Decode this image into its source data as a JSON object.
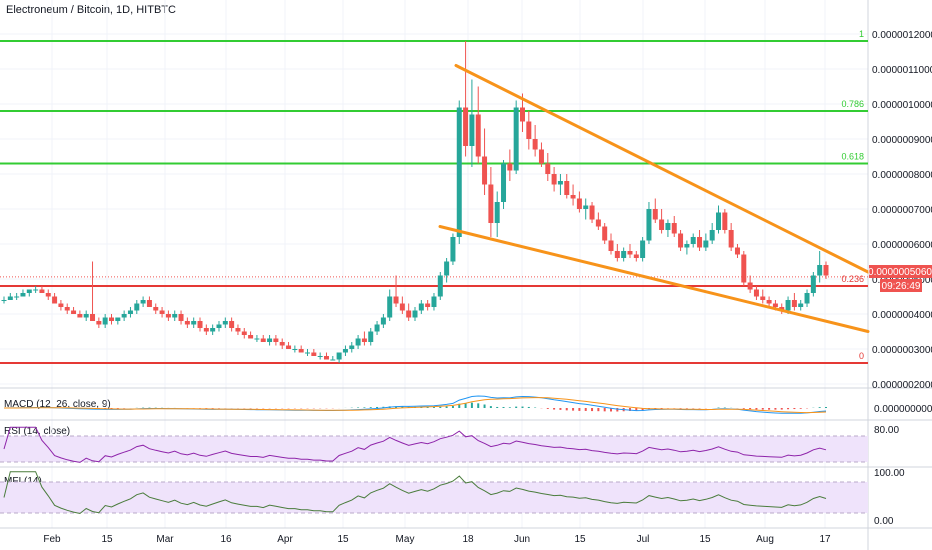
{
  "header": {
    "title": "Electroneum / Bitcoin, 1D, HITBTC"
  },
  "price_axis": {
    "ticks": [
      "0.0000012000",
      "0.0000011000",
      "0.0000010000",
      "0.0000009000",
      "0.0000008000",
      "0.0000007000",
      "0.0000006000",
      "0.0000005000",
      "0.0000004000",
      "0.0000003000",
      "0.0000002000"
    ],
    "last_price": "0.0000005060",
    "countdown": "09:26:49"
  },
  "time_axis": {
    "labels": [
      "Feb",
      "15",
      "Mar",
      "16",
      "Apr",
      "15",
      "May",
      "18",
      "Jun",
      "15",
      "Jul",
      "15",
      "Aug",
      "17"
    ]
  },
  "panes": {
    "macd": {
      "label": "MACD (12, 26, close, 9)",
      "tick": "0.0000000000"
    },
    "rsi": {
      "label": "RSI (14, close)",
      "tick": "80.00"
    },
    "mfi": {
      "label": "MFI (14)",
      "tick_top": "100.00",
      "tick_bottom": "0.00"
    }
  },
  "colors": {
    "up": "#26a69a",
    "down": "#ef5350",
    "fib_green": "#33cc33",
    "support_red": "#e53935",
    "wedge": "#f7931a",
    "osc_line": "#8e24aa",
    "mfi_line": "#4a7c3c",
    "band_fill": "#efe3fb"
  },
  "chart_data": {
    "type": "candlestick",
    "title": "Electroneum / Bitcoin, 1D, HITBTC",
    "ylim": [
      1.5e-07,
      1.25e-06
    ],
    "fib_levels": [
      {
        "label": "1",
        "value": 1.18e-06
      },
      {
        "label": "0.786",
        "value": 9.8e-07
      },
      {
        "label": "0.618",
        "value": 8.3e-07
      },
      {
        "label": "0.236",
        "value": 4.8e-07
      },
      {
        "label": "0",
        "value": 2.6e-07
      }
    ],
    "wedge_upper": [
      [
        "May 14",
        1.11e-06
      ],
      [
        "Aug 20",
        5.2e-07
      ]
    ],
    "wedge_lower": [
      [
        "May 10",
        6.5e-07
      ],
      [
        "Aug 20",
        3.5e-07
      ]
    ],
    "annotations": [
      "0.236 marker",
      "0 marker"
    ],
    "candles": [
      [
        4.4e-07,
        4.5e-07,
        4.3e-07,
        4.4e-07
      ],
      [
        4.4e-07,
        4.6e-07,
        4.4e-07,
        4.5e-07
      ],
      [
        4.5e-07,
        4.6e-07,
        4.4e-07,
        4.5e-07
      ],
      [
        4.5e-07,
        4.7e-07,
        4.5e-07,
        4.6e-07
      ],
      [
        4.6e-07,
        4.7e-07,
        4.5e-07,
        4.7e-07
      ],
      [
        4.7e-07,
        4.8e-07,
        4.6e-07,
        4.7e-07
      ],
      [
        4.7e-07,
        4.8e-07,
        4.6e-07,
        4.6e-07
      ],
      [
        4.6e-07,
        4.7e-07,
        4.4e-07,
        4.5e-07
      ],
      [
        4.5e-07,
        4.6e-07,
        4.3e-07,
        4.3e-07
      ],
      [
        4.3e-07,
        4.4e-07,
        4.1e-07,
        4.2e-07
      ],
      [
        4.2e-07,
        4.3e-07,
        4e-07,
        4.1e-07
      ],
      [
        4.1e-07,
        4.2e-07,
        4e-07,
        4e-07
      ],
      [
        4e-07,
        4.1e-07,
        3.9e-07,
        3.9e-07
      ],
      [
        3.9e-07,
        4.1e-07,
        3.8e-07,
        4e-07
      ],
      [
        4e-07,
        5.5e-07,
        3.9e-07,
        3.8e-07
      ],
      [
        3.8e-07,
        3.9e-07,
        3.6e-07,
        3.7e-07
      ],
      [
        3.7e-07,
        4e-07,
        3.6e-07,
        3.9e-07
      ],
      [
        3.9e-07,
        4e-07,
        3.7e-07,
        3.8e-07
      ],
      [
        3.8e-07,
        3.9e-07,
        3.7e-07,
        3.9e-07
      ],
      [
        3.9e-07,
        4.1e-07,
        3.8e-07,
        4e-07
      ],
      [
        4e-07,
        4.2e-07,
        3.9e-07,
        4.1e-07
      ],
      [
        4.1e-07,
        4.4e-07,
        4e-07,
        4.3e-07
      ],
      [
        4.3e-07,
        4.5e-07,
        4.2e-07,
        4.4e-07
      ],
      [
        4.4e-07,
        4.5e-07,
        4.2e-07,
        4.2e-07
      ],
      [
        4.2e-07,
        4.3e-07,
        4e-07,
        4.1e-07
      ],
      [
        4.1e-07,
        4.2e-07,
        3.9e-07,
        4e-07
      ],
      [
        4e-07,
        4.1e-07,
        3.8e-07,
        3.9e-07
      ],
      [
        3.9e-07,
        4.1e-07,
        3.8e-07,
        4e-07
      ],
      [
        4e-07,
        4.1e-07,
        3.7e-07,
        3.8e-07
      ],
      [
        3.8e-07,
        3.9e-07,
        3.6e-07,
        3.7e-07
      ],
      [
        3.7e-07,
        3.9e-07,
        3.6e-07,
        3.8e-07
      ],
      [
        3.8e-07,
        3.9e-07,
        3.5e-07,
        3.6e-07
      ],
      [
        3.6e-07,
        3.7e-07,
        3.4e-07,
        3.5e-07
      ],
      [
        3.5e-07,
        3.7e-07,
        3.4e-07,
        3.6e-07
      ],
      [
        3.6e-07,
        3.8e-07,
        3.5e-07,
        3.7e-07
      ],
      [
        3.7e-07,
        3.9e-07,
        3.6e-07,
        3.8e-07
      ],
      [
        3.8e-07,
        3.9e-07,
        3.5e-07,
        3.6e-07
      ],
      [
        3.6e-07,
        3.7e-07,
        3.4e-07,
        3.5e-07
      ],
      [
        3.5e-07,
        3.6e-07,
        3.3e-07,
        3.4e-07
      ],
      [
        3.4e-07,
        3.5e-07,
        3.3e-07,
        3.3e-07
      ],
      [
        3.3e-07,
        3.4e-07,
        3.2e-07,
        3.3e-07
      ],
      [
        3.3e-07,
        3.4e-07,
        3.2e-07,
        3.2e-07
      ],
      [
        3.2e-07,
        3.4e-07,
        3.1e-07,
        3.3e-07
      ],
      [
        3.3e-07,
        3.4e-07,
        3.1e-07,
        3.2e-07
      ],
      [
        3.2e-07,
        3.3e-07,
        3e-07,
        3.1e-07
      ],
      [
        3.1e-07,
        3.2e-07,
        3e-07,
        3e-07
      ],
      [
        3e-07,
        3.1e-07,
        2.9e-07,
        3e-07
      ],
      [
        3e-07,
        3.1e-07,
        2.9e-07,
        2.9e-07
      ],
      [
        2.9e-07,
        3e-07,
        2.8e-07,
        2.9e-07
      ],
      [
        2.9e-07,
        3e-07,
        2.8e-07,
        2.8e-07
      ],
      [
        2.8e-07,
        2.9e-07,
        2.7e-07,
        2.8e-07
      ],
      [
        2.8e-07,
        2.9e-07,
        2.7e-07,
        2.7e-07
      ],
      [
        2.7e-07,
        2.8e-07,
        2.7e-07,
        2.7e-07
      ],
      [
        2.7e-07,
        2.9e-07,
        2.6e-07,
        2.9e-07
      ],
      [
        2.9e-07,
        3.1e-07,
        2.8e-07,
        3e-07
      ],
      [
        3e-07,
        3.2e-07,
        2.9e-07,
        3.1e-07
      ],
      [
        3.1e-07,
        3.4e-07,
        3e-07,
        3.3e-07
      ],
      [
        3.3e-07,
        3.5e-07,
        3.1e-07,
        3.2e-07
      ],
      [
        3.2e-07,
        3.6e-07,
        3.1e-07,
        3.5e-07
      ],
      [
        3.5e-07,
        3.8e-07,
        3.4e-07,
        3.7e-07
      ],
      [
        3.7e-07,
        4e-07,
        3.6e-07,
        3.9e-07
      ],
      [
        3.9e-07,
        4.7e-07,
        3.8e-07,
        4.5e-07
      ],
      [
        4.5e-07,
        5.1e-07,
        4.2e-07,
        4.3e-07
      ],
      [
        4.3e-07,
        4.5e-07,
        4e-07,
        4.1e-07
      ],
      [
        4.1e-07,
        4.3e-07,
        3.8e-07,
        3.9e-07
      ],
      [
        3.9e-07,
        4.2e-07,
        3.8e-07,
        4.1e-07
      ],
      [
        4.1e-07,
        4.4e-07,
        4e-07,
        4.3e-07
      ],
      [
        4.3e-07,
        4.4e-07,
        4.1e-07,
        4.2e-07
      ],
      [
        4.2e-07,
        4.6e-07,
        4.1e-07,
        4.5e-07
      ],
      [
        4.5e-07,
        5.2e-07,
        4.4e-07,
        5.1e-07
      ],
      [
        5.1e-07,
        5.6e-07,
        4.9e-07,
        5.5e-07
      ],
      [
        5.5e-07,
        6.3e-07,
        5.4e-07,
        6.2e-07
      ],
      [
        6.2e-07,
        1.01e-06,
        6e-07,
        9.9e-07
      ],
      [
        9.9e-07,
        1.18e-06,
        8.5e-07,
        8.8e-07
      ],
      [
        8.8e-07,
        1.07e-06,
        8.2e-07,
        9.7e-07
      ],
      [
        9.7e-07,
        1.05e-06,
        8.3e-07,
        8.5e-07
      ],
      [
        8.5e-07,
        9.3e-07,
        7.4e-07,
        7.7e-07
      ],
      [
        7.7e-07,
        8.2e-07,
        6.2e-07,
        6.6e-07
      ],
      [
        6.6e-07,
        7.5e-07,
        6.2e-07,
        7.2e-07
      ],
      [
        7.2e-07,
        8.4e-07,
        7e-07,
        8.3e-07
      ],
      [
        8.3e-07,
        8.7e-07,
        7.8e-07,
        8.1e-07
      ],
      [
        8.1e-07,
        1.01e-06,
        8e-07,
        9.9e-07
      ],
      [
        9.9e-07,
        1.03e-06,
        9.2e-07,
        9.5e-07
      ],
      [
        9.5e-07,
        9.8e-07,
        8.7e-07,
        9e-07
      ],
      [
        9e-07,
        9.4e-07,
        8.5e-07,
        8.7e-07
      ],
      [
        8.7e-07,
        8.9e-07,
        8.2e-07,
        8.3e-07
      ],
      [
        8.3e-07,
        8.6e-07,
        7.8e-07,
        8e-07
      ],
      [
        8e-07,
        8.2e-07,
        7.5e-07,
        7.7e-07
      ],
      [
        7.7e-07,
        8e-07,
        7.4e-07,
        7.8e-07
      ],
      [
        7.8e-07,
        8e-07,
        7.3e-07,
        7.4e-07
      ],
      [
        7.4e-07,
        7.7e-07,
        7.1e-07,
        7.3e-07
      ],
      [
        7.3e-07,
        7.5e-07,
        6.9e-07,
        7e-07
      ],
      [
        7e-07,
        7.3e-07,
        6.7e-07,
        7.1e-07
      ],
      [
        7.1e-07,
        7.2e-07,
        6.6e-07,
        6.7e-07
      ],
      [
        6.7e-07,
        6.9e-07,
        6.4e-07,
        6.5e-07
      ],
      [
        6.5e-07,
        6.6e-07,
        6e-07,
        6.1e-07
      ],
      [
        6.1e-07,
        6.3e-07,
        5.7e-07,
        5.8e-07
      ],
      [
        5.8e-07,
        6e-07,
        5.5e-07,
        5.6e-07
      ],
      [
        5.6e-07,
        5.9e-07,
        5.5e-07,
        5.8e-07
      ],
      [
        5.8e-07,
        6e-07,
        5.6e-07,
        5.7e-07
      ],
      [
        5.7e-07,
        5.8e-07,
        5.5e-07,
        5.6e-07
      ],
      [
        5.6e-07,
        6.2e-07,
        5.5e-07,
        6.1e-07
      ],
      [
        6.1e-07,
        7.2e-07,
        6e-07,
        7e-07
      ],
      [
        7e-07,
        7.3e-07,
        6.6e-07,
        6.7e-07
      ],
      [
        6.7e-07,
        7e-07,
        6.3e-07,
        6.4e-07
      ],
      [
        6.4e-07,
        6.7e-07,
        6.2e-07,
        6.6e-07
      ],
      [
        6.6e-07,
        6.8e-07,
        6.2e-07,
        6.3e-07
      ],
      [
        6.3e-07,
        6.4e-07,
        5.8e-07,
        5.9e-07
      ],
      [
        5.9e-07,
        6.1e-07,
        5.7e-07,
        6e-07
      ],
      [
        6e-07,
        6.3e-07,
        5.9e-07,
        6.2e-07
      ],
      [
        6.2e-07,
        6.4e-07,
        5.8e-07,
        5.9e-07
      ],
      [
        5.9e-07,
        6.3e-07,
        5.8e-07,
        6.1e-07
      ],
      [
        6.1e-07,
        6.6e-07,
        6e-07,
        6.4e-07
      ],
      [
        6.4e-07,
        7.1e-07,
        6.3e-07,
        6.9e-07
      ],
      [
        6.9e-07,
        7e-07,
        6.3e-07,
        6.4e-07
      ],
      [
        6.4e-07,
        6.6e-07,
        5.8e-07,
        5.9e-07
      ],
      [
        5.9e-07,
        6e-07,
        5.6e-07,
        5.7e-07
      ],
      [
        5.7e-07,
        5.8e-07,
        4.8e-07,
        4.9e-07
      ],
      [
        4.9e-07,
        5.1e-07,
        4.6e-07,
        4.7e-07
      ],
      [
        4.7e-07,
        4.8e-07,
        4.4e-07,
        4.5e-07
      ],
      [
        4.5e-07,
        4.7e-07,
        4.3e-07,
        4.4e-07
      ],
      [
        4.4e-07,
        4.5e-07,
        4.2e-07,
        4.3e-07
      ],
      [
        4.3e-07,
        4.4e-07,
        4.1e-07,
        4.2e-07
      ],
      [
        4.2e-07,
        4.3e-07,
        4e-07,
        4.1e-07
      ],
      [
        4.1e-07,
        4.5e-07,
        4e-07,
        4.4e-07
      ],
      [
        4.4e-07,
        4.6e-07,
        4.1e-07,
        4.2e-07
      ],
      [
        4.2e-07,
        4.4e-07,
        4.1e-07,
        4.3e-07
      ],
      [
        4.3e-07,
        4.7e-07,
        4.2e-07,
        4.6e-07
      ],
      [
        4.6e-07,
        5.2e-07,
        4.5e-07,
        5.1e-07
      ],
      [
        5.1e-07,
        5.8e-07,
        4.9e-07,
        5.4e-07
      ],
      [
        5.4e-07,
        5.5e-07,
        5e-07,
        5.1e-07
      ]
    ]
  }
}
